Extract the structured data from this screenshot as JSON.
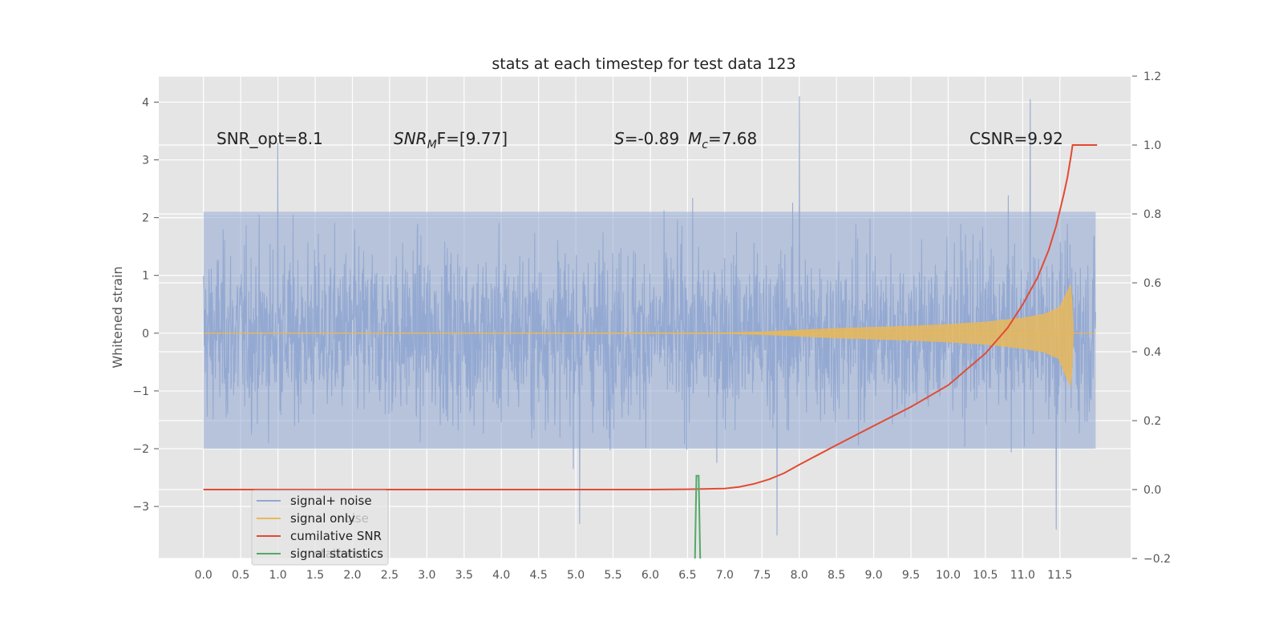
{
  "chart_data": {
    "type": "line",
    "title": "stats at each timestep for test data 123",
    "xlabel": "",
    "ylabel": "Whitened strain",
    "xlim": [
      -0.6,
      12.45
    ],
    "ylim": [
      -3.9,
      4.45
    ],
    "ylim_right": [
      -0.2,
      1.2
    ],
    "grid": true,
    "legend_position": "lower-left",
    "x_ticks": [
      "0.0",
      "0.5",
      "1.0",
      "1.5",
      "2.0",
      "2.5",
      "3.0",
      "3.5",
      "4.0",
      "4.5",
      "5.0",
      "5.5",
      "6.0",
      "6.5",
      "7.0",
      "7.5",
      "8.0",
      "8.5",
      "9.0",
      "9.5",
      "10.0",
      "10.5",
      "11.0",
      "11.5"
    ],
    "y_ticks": [
      "4",
      "3",
      "2",
      "1",
      "0",
      "−1",
      "−2",
      "−3"
    ],
    "y_ticks_right": [
      "1.2",
      "1.0",
      "0.8",
      "0.6",
      "0.4",
      "0.2",
      "0.0",
      "−0.2"
    ],
    "annotations": {
      "snr_opt": "SNR_opt=8.1",
      "snr_mf_base": "SNR",
      "snr_mf_sub": "M",
      "snr_mf_rest": "F=[9.77]",
      "s_label": "S",
      "s_value": "=-0.89",
      "mc_label": "M",
      "mc_sub": "c",
      "mc_value": "=7.68",
      "csnr": "CSNR=9.92"
    },
    "series": [
      {
        "name": "signal+ noise",
        "color": "#92a8d1",
        "description": "whitened strain noise, approx amplitude ±2.2 with peaks to 4.1",
        "peaks": [
          {
            "x": 8.0,
            "y": 4.1
          },
          {
            "x": 11.1,
            "y": 4.05
          },
          {
            "x": 1.0,
            "y": 3.3
          },
          {
            "x": 11.45,
            "y": -3.4
          },
          {
            "x": 5.05,
            "y": -3.3
          },
          {
            "x": 7.7,
            "y": -3.5
          }
        ]
      },
      {
        "name": "signal only",
        "color": "#e8b85a",
        "description": "chirp signal growing in amplitude toward merger",
        "envelope": {
          "x": [
            0.0,
            7.0,
            7.5,
            8.0,
            8.5,
            9.0,
            9.5,
            10.0,
            10.5,
            11.0,
            11.3,
            11.5,
            11.65,
            11.68,
            11.7,
            12.0
          ],
          "y": [
            0.0,
            0.005,
            0.02,
            0.05,
            0.08,
            0.1,
            0.12,
            0.15,
            0.19,
            0.26,
            0.33,
            0.45,
            0.85,
            0.0,
            0.0,
            0.0
          ]
        }
      },
      {
        "name": "cumilative SNR",
        "color": "#e24a33",
        "axis": "right",
        "x": [
          0.0,
          6.0,
          6.5,
          7.0,
          7.2,
          7.4,
          7.6,
          7.8,
          8.0,
          8.5,
          9.0,
          9.5,
          10.0,
          10.5,
          10.8,
          11.0,
          11.2,
          11.35,
          11.45,
          11.55,
          11.6,
          11.65,
          11.67,
          11.7,
          12.0
        ],
        "y": [
          0.0,
          0.0,
          0.001,
          0.003,
          0.008,
          0.017,
          0.03,
          0.048,
          0.072,
          0.129,
          0.185,
          0.24,
          0.303,
          0.395,
          0.47,
          0.537,
          0.615,
          0.695,
          0.765,
          0.855,
          0.905,
          0.97,
          1.0,
          1.0,
          1.0
        ]
      },
      {
        "name": "signal statistics",
        "color": "#55a868",
        "axis": "right",
        "x": [
          6.6,
          6.62,
          6.63,
          6.65,
          6.67
        ],
        "y": [
          -0.2,
          0.04,
          0.04,
          0.04,
          -0.2
        ]
      }
    ],
    "legend_ghost": [
      "noise",
      "statistics"
    ]
  }
}
